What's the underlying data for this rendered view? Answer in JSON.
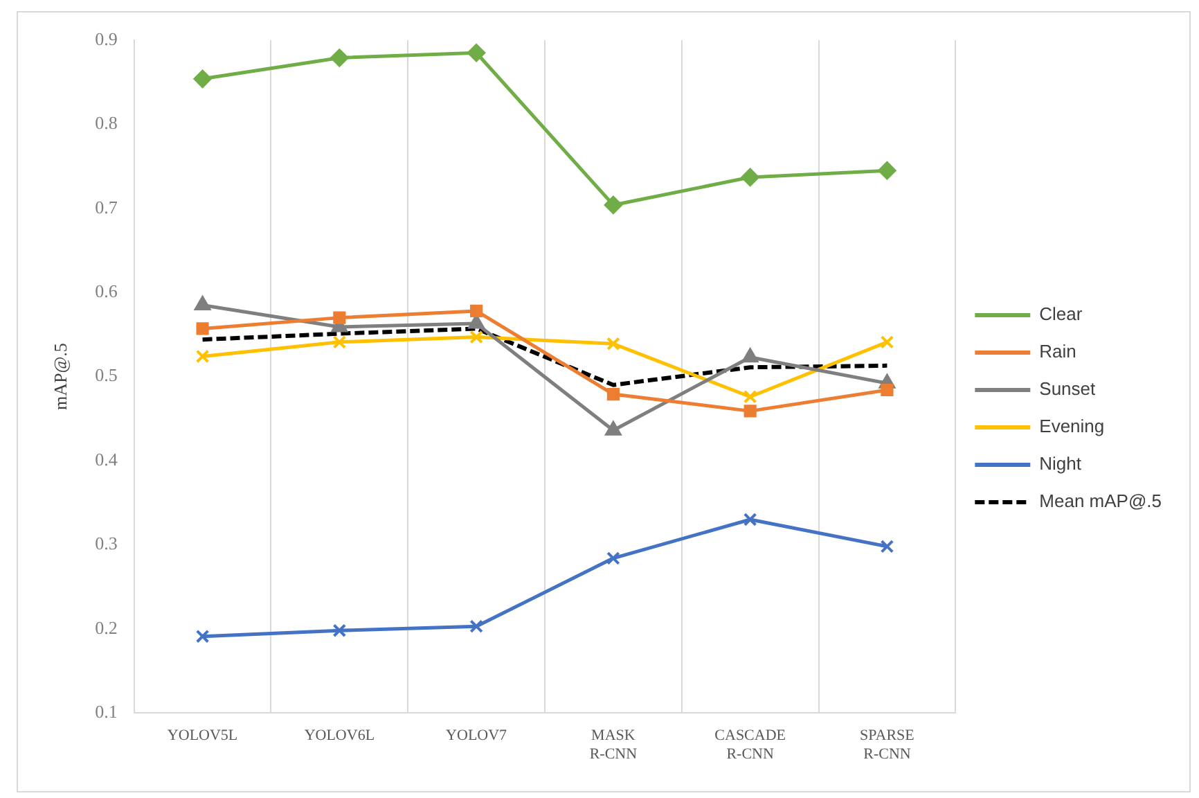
{
  "chart_data": {
    "type": "line",
    "ylabel": "mAP@.5",
    "categories": [
      "YOLOV5L",
      "YOLOV6L",
      "YOLOV7",
      "MASK R-CNN",
      "CASCADE R-CNN",
      "SPARSE R-CNN"
    ],
    "ylim": [
      0.1,
      0.9
    ],
    "yticks": [
      0.1,
      0.2,
      0.3,
      0.4,
      0.5,
      0.6,
      0.7,
      0.8,
      0.9
    ],
    "grid": "x",
    "legend": "right",
    "series": [
      {
        "name": "Clear",
        "color": "#70ad47",
        "marker": "diamond",
        "values": [
          0.854,
          0.879,
          0.885,
          0.704,
          0.737,
          0.745
        ]
      },
      {
        "name": "Rain",
        "color": "#ed7d31",
        "marker": "square",
        "values": [
          0.557,
          0.57,
          0.578,
          0.479,
          0.459,
          0.484
        ]
      },
      {
        "name": "Sunset",
        "color": "#7f7f7f",
        "marker": "triangle",
        "values": [
          0.585,
          0.559,
          0.563,
          0.436,
          0.523,
          0.492
        ]
      },
      {
        "name": "Evening",
        "color": "#ffc000",
        "marker": "cross",
        "values": [
          0.524,
          0.541,
          0.547,
          0.539,
          0.476,
          0.541
        ]
      },
      {
        "name": "Night",
        "color": "#4472c4",
        "marker": "cross",
        "values": [
          0.191,
          0.198,
          0.203,
          0.284,
          0.33,
          0.298
        ]
      },
      {
        "name": "Mean mAP@.5",
        "color": "#000000",
        "marker": "none",
        "line_style": "dashed",
        "values": [
          0.544,
          0.551,
          0.557,
          0.49,
          0.511,
          0.513
        ]
      }
    ]
  }
}
